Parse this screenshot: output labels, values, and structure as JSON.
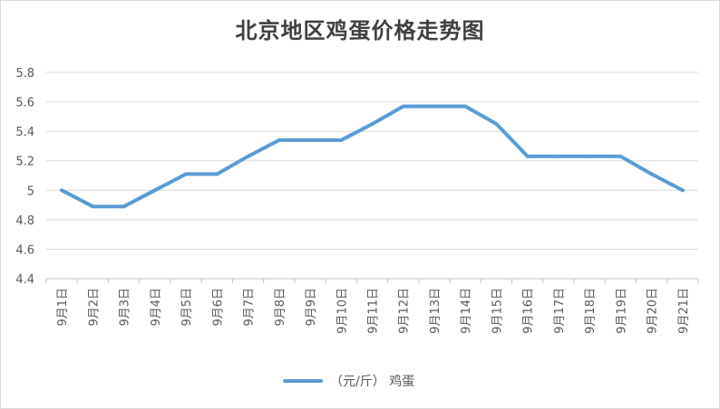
{
  "chart_data": {
    "type": "line",
    "title": "北京地区鸡蛋价格走势图",
    "xlabel": "",
    "ylabel": "",
    "categories": [
      "9月1日",
      "9月2日",
      "9月3日",
      "9月4日",
      "9月5日",
      "9月6日",
      "9月7日",
      "9月8日",
      "9月9日",
      "9月10日",
      "9月11日",
      "9月12日",
      "9月13日",
      "9月14日",
      "9月15日",
      "9月16日",
      "9月17日",
      "9月18日",
      "9月19日",
      "9月20日",
      "9月21日"
    ],
    "series": [
      {
        "name": "（元/斤） 鸡蛋",
        "color": "#5b9bd5",
        "values": [
          5.0,
          4.89,
          4.89,
          5.0,
          5.11,
          5.11,
          5.23,
          5.34,
          5.34,
          5.34,
          5.45,
          5.57,
          5.57,
          5.57,
          5.45,
          5.23,
          5.23,
          5.23,
          5.23,
          5.11,
          5.0
        ]
      }
    ],
    "yticks": [
      "4.4",
      "4.6",
      "4.8",
      "5",
      "5.2",
      "5.4",
      "5.6",
      "5.8"
    ],
    "ylim": [
      4.4,
      5.8
    ],
    "grid": true,
    "legend_position": "bottom"
  }
}
